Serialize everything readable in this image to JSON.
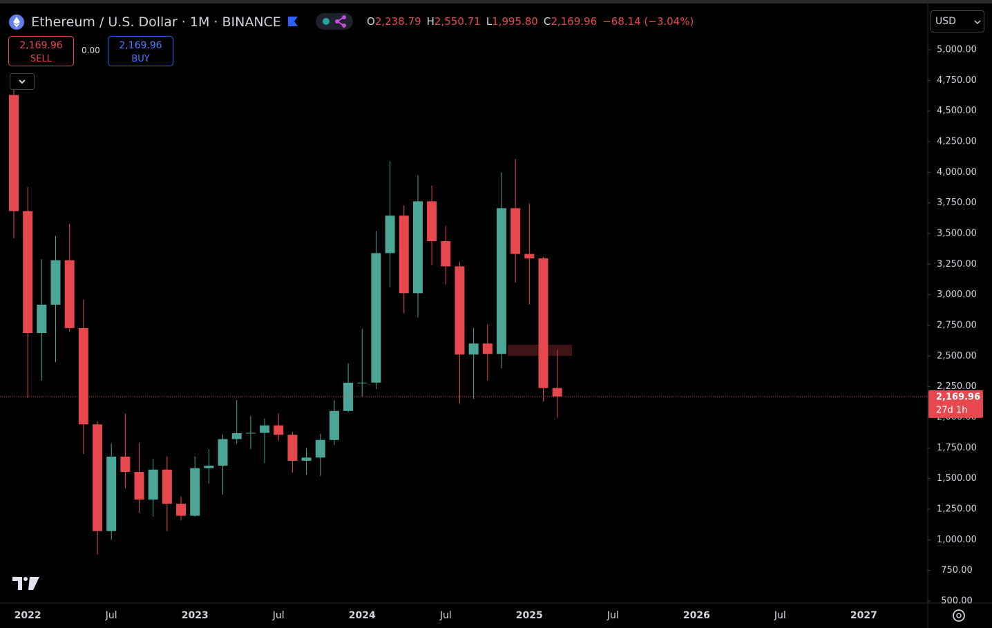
{
  "header": {
    "symbol": "Ethereum / U.S. Dollar · 1M · BINANCE",
    "ohlc": [
      {
        "key": "O",
        "value": "2,238.79"
      },
      {
        "key": "H",
        "value": "2,550.71"
      },
      {
        "key": "L",
        "value": "1,995.80"
      },
      {
        "key": "C",
        "value": "2,169.96"
      }
    ],
    "change": "−68.14 (−3.04%)"
  },
  "trade": {
    "sell_price": "2,169.96",
    "sell": "SELL",
    "spread": "0.00",
    "buy_price": "2,169.96",
    "buy": "BUY"
  },
  "currency": "USD",
  "chart_data": {
    "type": "candlestick",
    "categories": [
      null,
      "2022",
      null,
      null,
      null,
      null,
      null,
      "Jul",
      null,
      null,
      null,
      null,
      null,
      "2023",
      null,
      null,
      null,
      null,
      null,
      "Jul",
      null,
      null,
      null,
      null,
      null,
      "2024",
      null,
      null,
      null,
      null,
      null,
      "Jul",
      null,
      null,
      null,
      null,
      null,
      "2025",
      null,
      null,
      null,
      null,
      null,
      "Jul",
      null,
      null,
      null,
      null,
      null,
      "2026",
      null,
      null,
      null,
      null,
      null,
      "Jul",
      null,
      null,
      null,
      null,
      null,
      "2027",
      null,
      null,
      null,
      null
    ],
    "open": [
      4631,
      3683,
      2688,
      2919,
      3282,
      2728,
      1942,
      1071,
      1679,
      1554,
      1328,
      1573,
      1294,
      1196,
      1585,
      1605,
      1822,
      1870,
      1873,
      1934,
      1857,
      1645,
      1671,
      1815,
      2052,
      2282,
      2283,
      3340,
      3646,
      3013,
      3763,
      3438,
      3232,
      2512,
      2602,
      2517,
      3707,
      3333,
      3297,
      2238.79,
      null,
      null,
      null,
      null,
      null,
      null,
      null,
      null,
      null,
      null,
      null,
      null,
      null,
      null,
      null,
      null,
      null,
      null,
      null,
      null,
      null,
      null,
      null,
      null,
      null,
      null
    ],
    "high": [
      4680,
      3880,
      3290,
      3480,
      3580,
      2960,
      1970,
      1785,
      2030,
      1790,
      1660,
      1680,
      1352,
      1680,
      1740,
      1860,
      2140,
      2010,
      1990,
      2030,
      1880,
      1750,
      1865,
      2140,
      2440,
      2720,
      3520,
      4090,
      3730,
      3975,
      3890,
      3560,
      3270,
      2730,
      2760,
      4000,
      4110,
      3745,
      3310,
      2550.71,
      null,
      null,
      null,
      null,
      null,
      null,
      null,
      null,
      null,
      null,
      null,
      null,
      null,
      null,
      null,
      null,
      null,
      null,
      null,
      null,
      null,
      null,
      null,
      null,
      null,
      null
    ],
    "low": [
      3460,
      2160,
      2300,
      2450,
      2700,
      1700,
      880,
      1000,
      1420,
      1220,
      1190,
      1070,
      1160,
      1190,
      1460,
      1370,
      1785,
      1740,
      1625,
      1810,
      1550,
      1530,
      1520,
      1775,
      2040,
      2170,
      2230,
      3060,
      2850,
      2815,
      3240,
      3085,
      2110,
      2150,
      2300,
      2400,
      3100,
      2920,
      2130,
      1995.8,
      null,
      null,
      null,
      null,
      null,
      null,
      null,
      null,
      null,
      null,
      null,
      null,
      null,
      null,
      null,
      null,
      null,
      null,
      null,
      null,
      null,
      null,
      null,
      null,
      null,
      null
    ],
    "close": [
      3683,
      2688,
      2919,
      3282,
      2728,
      1942,
      1071,
      1679,
      1554,
      1328,
      1573,
      1294,
      1196,
      1585,
      1605,
      1822,
      1870,
      1873,
      1934,
      1857,
      1645,
      1671,
      1815,
      2052,
      2282,
      2283,
      3340,
      3646,
      3013,
      3763,
      3438,
      3232,
      2512,
      2602,
      2517,
      3707,
      3333,
      3297,
      2238.79,
      2169.96,
      null,
      null,
      null,
      null,
      null,
      null,
      null,
      null,
      null,
      null,
      null,
      null,
      null,
      null,
      null,
      null,
      null,
      null,
      null,
      null,
      null,
      null,
      null,
      null,
      null,
      null
    ],
    "up_color": "#4ca698",
    "down_color": "#e5494d",
    "ylim": [
      483,
      5361
    ],
    "yticks": [
      {
        "value": 5000,
        "label": "5,000.00"
      },
      {
        "value": 4750,
        "label": "4,750.00"
      },
      {
        "value": 4500,
        "label": "4,500.00"
      },
      {
        "value": 4250,
        "label": "4,250.00"
      },
      {
        "value": 4000,
        "label": "4,000.00"
      },
      {
        "value": 3750,
        "label": "3,750.00"
      },
      {
        "value": 3500,
        "label": "3,500.00"
      },
      {
        "value": 3250,
        "label": "3,250.00"
      },
      {
        "value": 3000,
        "label": "3,000.00"
      },
      {
        "value": 2750,
        "label": "2,750.00"
      },
      {
        "value": 2500,
        "label": "2,500.00"
      },
      {
        "value": 2250,
        "label": "2,250.00"
      },
      {
        "value": 2000,
        "label": "2,000.00"
      },
      {
        "value": 1750,
        "label": "1,750.00"
      },
      {
        "value": 1500,
        "label": "1,500.00"
      },
      {
        "value": 1250,
        "label": "1,250.00"
      },
      {
        "value": 1000,
        "label": "1,000.00"
      },
      {
        "value": 750,
        "label": "750.00"
      },
      {
        "value": 500,
        "label": "500.00"
      }
    ],
    "last_price_label": {
      "price": "2,169.96",
      "countdown": "27d 1h"
    }
  }
}
